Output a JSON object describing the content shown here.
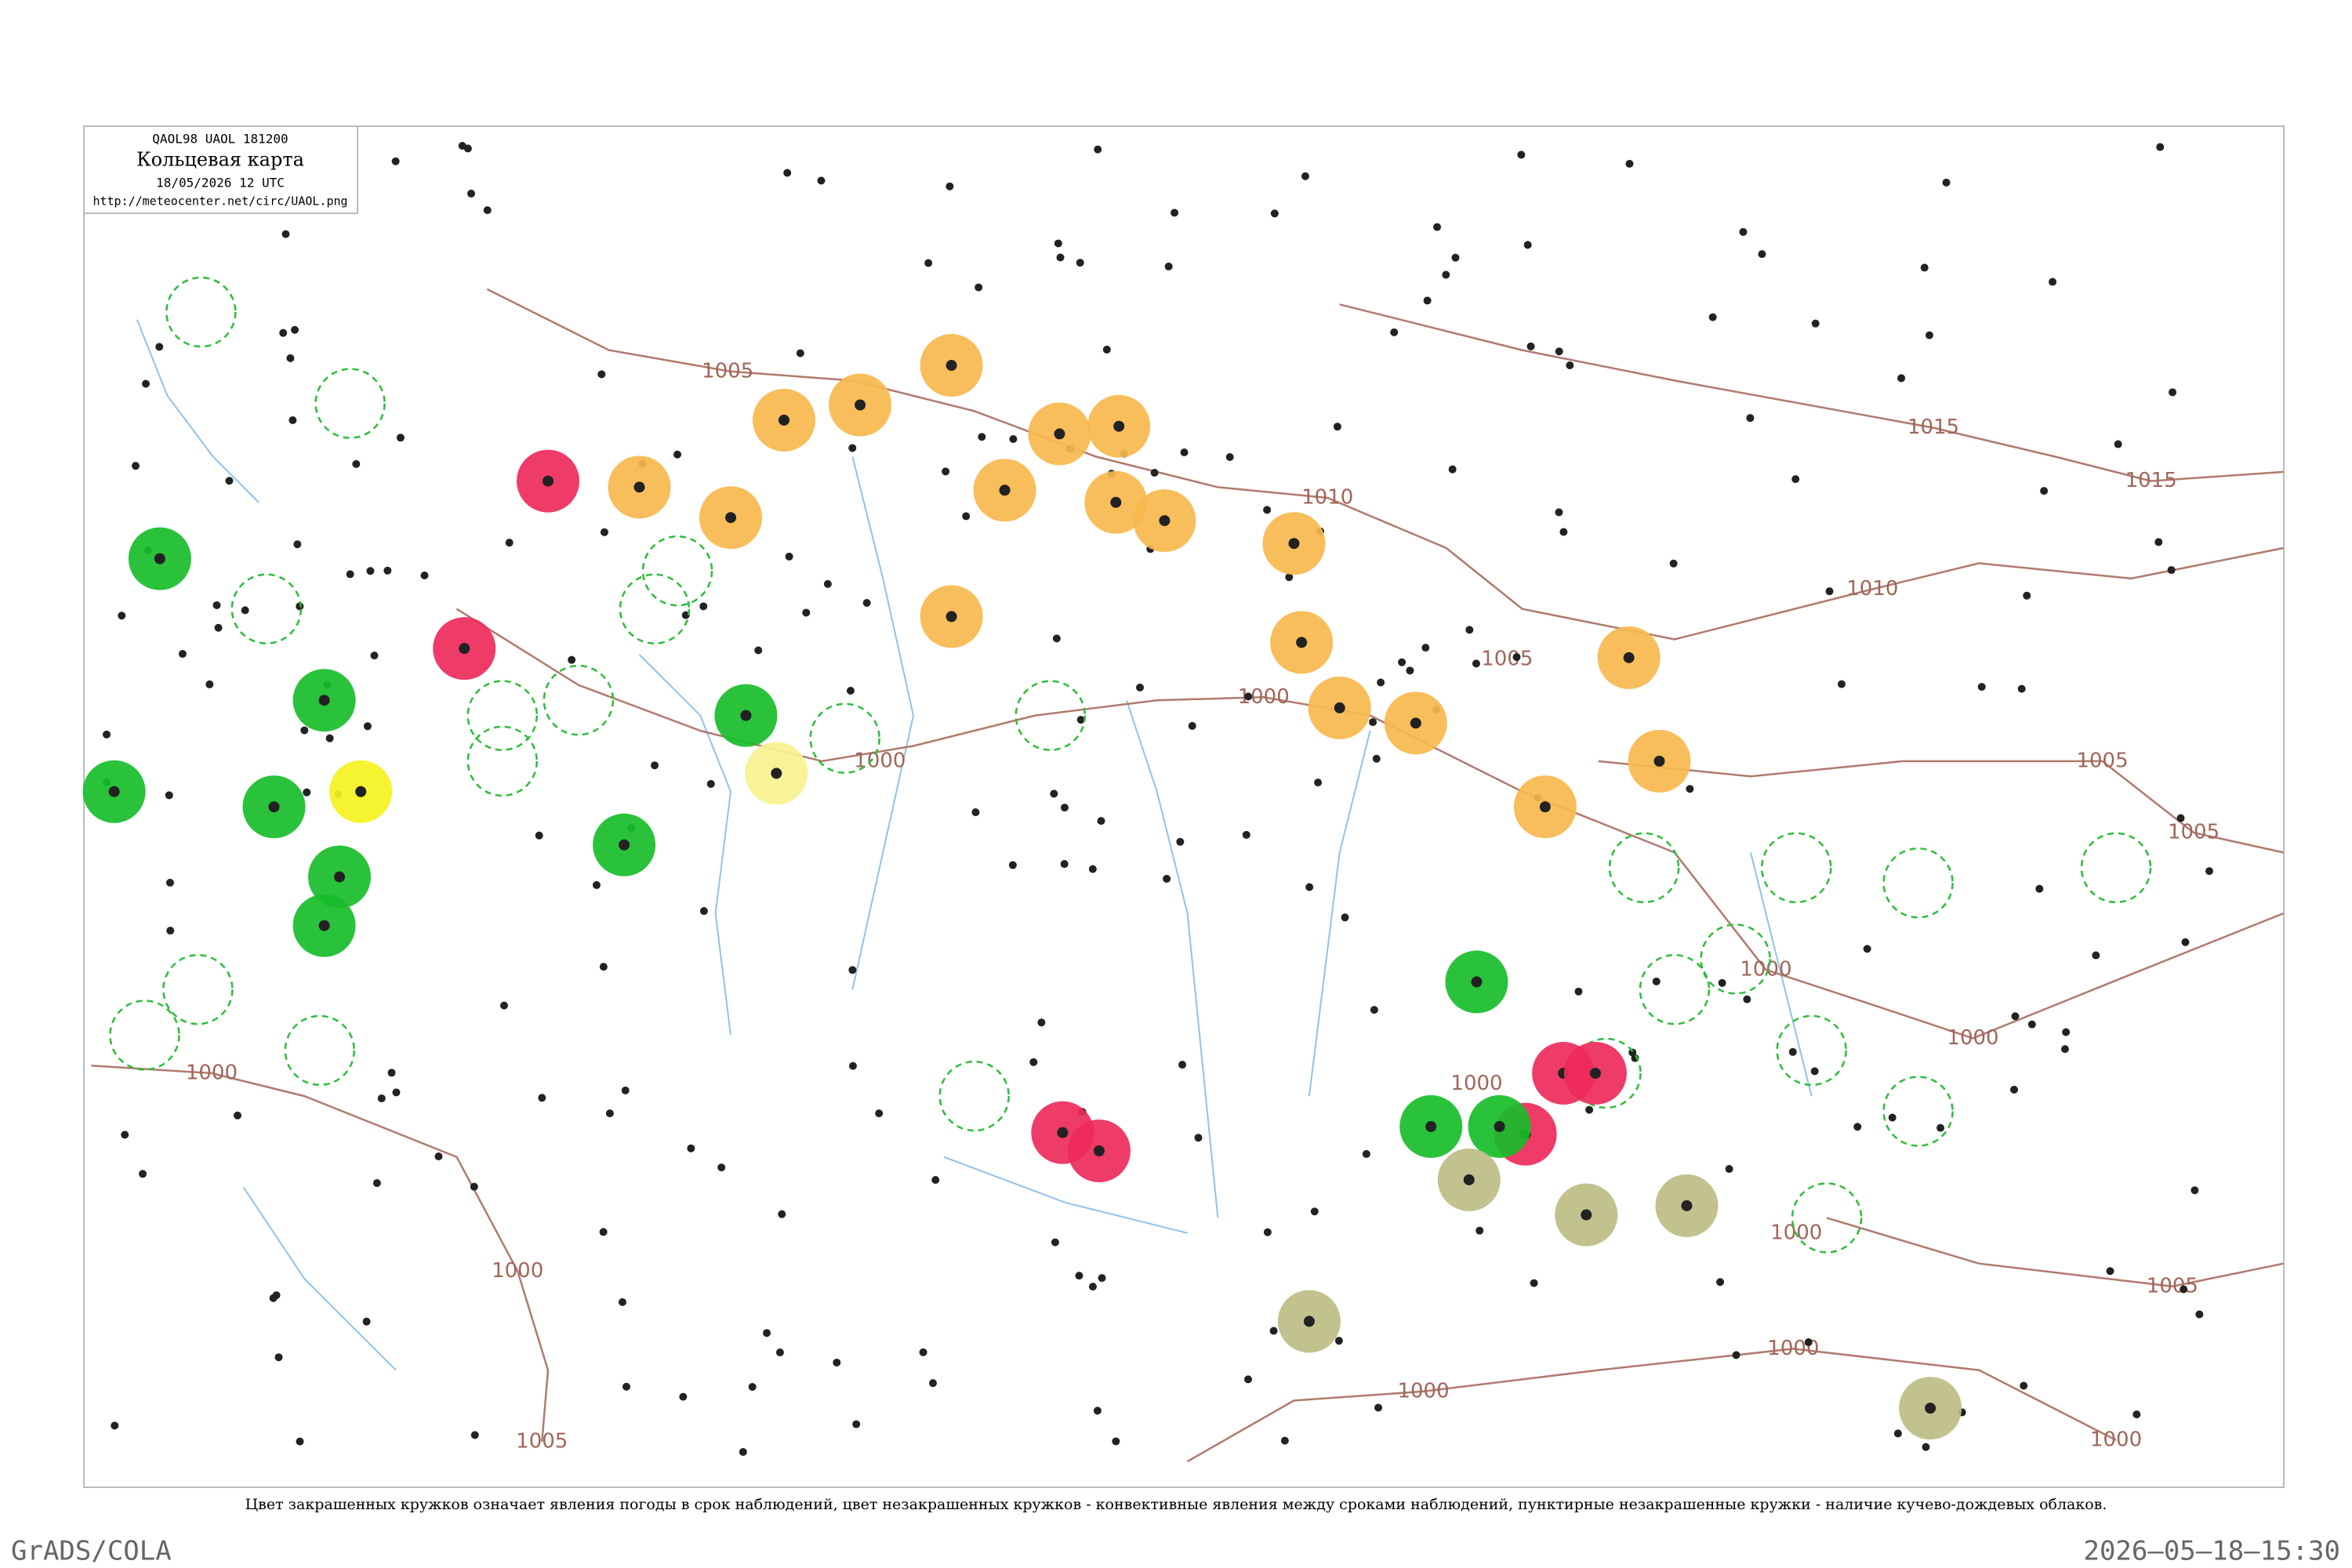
{
  "header": {
    "code": "QAOL98  UAOL  181200",
    "title": "Кольцевая карта",
    "datetime": "18/05/2026 12 UTC",
    "url": "http://meteocenter.net/circ/UAOL.png"
  },
  "isobar_labels": [
    "1005",
    "1015",
    "1010",
    "1015",
    "1010",
    "1005",
    "1000",
    "1000",
    "1005",
    "1005",
    "1000",
    "1000",
    "1000",
    "1000",
    "1000",
    "1000",
    "1005",
    "1000",
    "1000",
    "1005",
    "1000"
  ],
  "caption": "Цвет закрашенных кружков означает явления погоды в срок наблюдений, цвет незакрашенных кружков - конвективные явления между сроками наблюдений, пунктирные незакрашенные кружки - наличие кучево-дождевых облаков.",
  "footer": {
    "software": "GrADS/COLA",
    "timestamp": "2026–05–18–15:30"
  }
}
